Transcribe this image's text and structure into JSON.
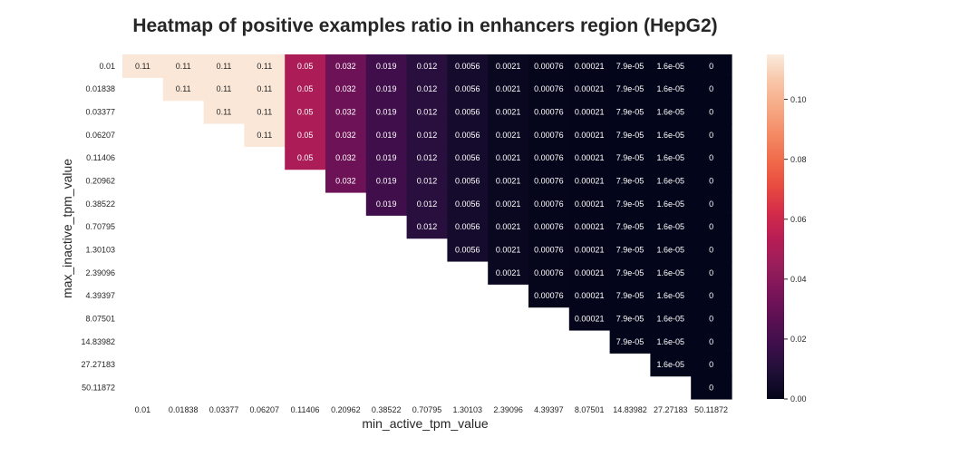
{
  "chart_data": {
    "type": "heatmap",
    "title": "Heatmap of positive examples ratio in enhancers region (HepG2)",
    "xlabel": "min_active_tpm_value",
    "ylabel": "max_inactive_tpm_value",
    "x_categories": [
      "0.01",
      "0.01838",
      "0.03377",
      "0.06207",
      "0.11406",
      "0.20962",
      "0.38522",
      "0.70795",
      "1.30103",
      "2.39096",
      "4.39397",
      "8.07501",
      "14.83982",
      "27.27183",
      "50.11872"
    ],
    "y_categories": [
      "0.01",
      "0.01838",
      "0.03377",
      "0.06207",
      "0.11406",
      "0.20962",
      "0.38522",
      "0.70795",
      "1.30103",
      "2.39096",
      "4.39397",
      "8.07501",
      "14.83982",
      "27.27183",
      "50.11872"
    ],
    "column_values": [
      0.114,
      0.114,
      0.114,
      0.114,
      0.05,
      0.032,
      0.019,
      0.012,
      0.0056,
      0.0021,
      0.00076,
      0.00021,
      7.9e-05,
      1.6e-05,
      0
    ],
    "column_labels": [
      "0.11",
      "0.11",
      "0.11",
      "0.11",
      "0.05",
      "0.032",
      "0.019",
      "0.012",
      "0.0056",
      "0.0021",
      "0.00076",
      "0.00021",
      "7.9e-05",
      "1.6e-05",
      "0"
    ],
    "mask": "upper-triangle (cell shown when column index >= row index)",
    "colorbar": {
      "range": [
        0,
        0.115
      ],
      "ticks": [
        0.0,
        0.02,
        0.04,
        0.06,
        0.08,
        0.1
      ],
      "tick_labels": [
        "0.00",
        "0.02",
        "0.04",
        "0.06",
        "0.08",
        "0.10"
      ]
    },
    "colormap": {
      "name": "rocket",
      "stops": [
        "#03051a",
        "#1f0f36",
        "#3c0f4a",
        "#5a1053",
        "#7a1459",
        "#981e5b",
        "#b61d55",
        "#d22b4a",
        "#e84a40",
        "#f06b4a",
        "#f48b66",
        "#f6a985",
        "#f8c6a8",
        "#faebdd"
      ]
    },
    "grid": false,
    "legend": "right"
  }
}
